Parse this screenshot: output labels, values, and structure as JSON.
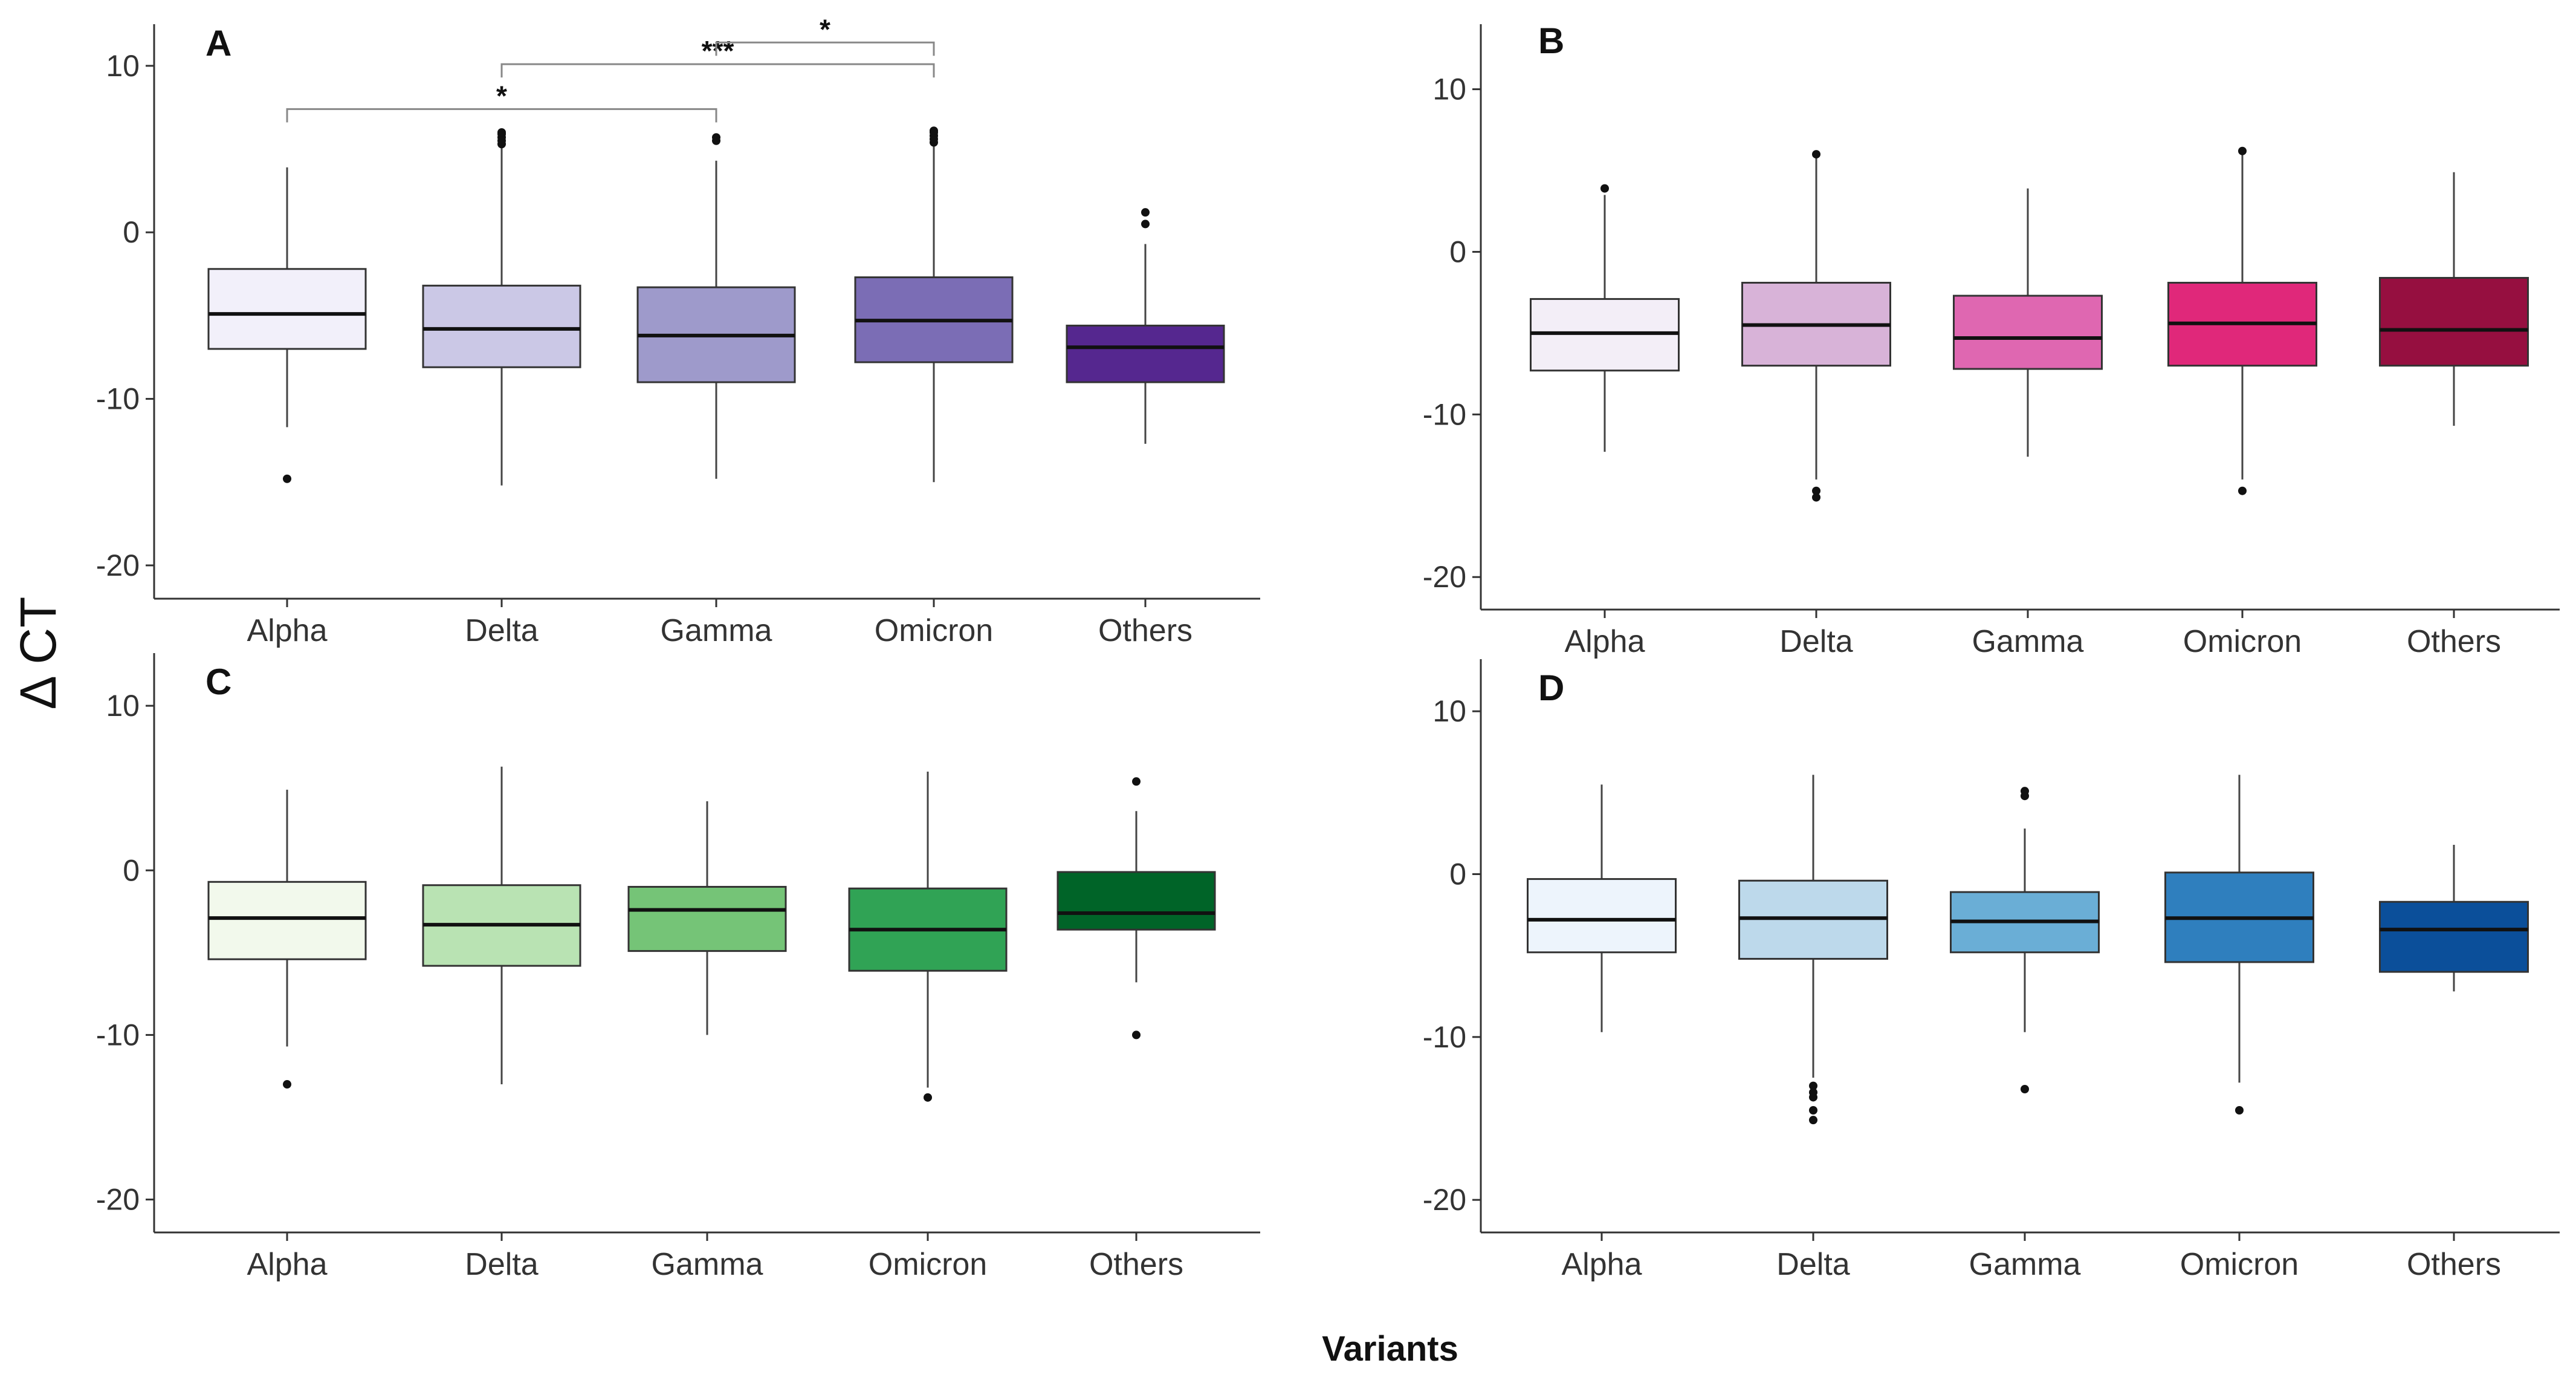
{
  "figure": {
    "ylabel": "Δ CT",
    "xlabel": "Variants"
  },
  "chart_data": [
    {
      "type": "box",
      "panel": "A",
      "title": "A",
      "categories": [
        "Alpha",
        "Delta",
        "Gamma",
        "Omicron",
        "Others"
      ],
      "ylim": [
        -22,
        12.5
      ],
      "yticks": [
        "10",
        "0",
        "-10",
        "-20"
      ],
      "ytick_values": [
        10,
        0,
        -10,
        -20
      ],
      "box_colors": [
        "#f2f0fa",
        "#cbc8e6",
        "#9e9acb",
        "#7b6db5",
        "#55278f"
      ],
      "boxes": [
        {
          "q1": -7.0,
          "median": -4.9,
          "q3": -2.2,
          "whisker_low": -11.7,
          "whisker_high": 3.9,
          "outliers": [
            -14.8
          ]
        },
        {
          "q1": -8.1,
          "median": -5.8,
          "q3": -3.2,
          "whisker_low": -15.2,
          "whisker_high": 5.3,
          "outliers": [
            5.5,
            5.7,
            5.9,
            6.0,
            5.3
          ]
        },
        {
          "q1": -9.0,
          "median": -6.2,
          "q3": -3.3,
          "whisker_low": -14.8,
          "whisker_high": 4.3,
          "outliers": [
            5.5,
            5.7
          ]
        },
        {
          "q1": -7.8,
          "median": -5.3,
          "q3": -2.7,
          "whisker_low": -15.0,
          "whisker_high": 5.3,
          "outliers": [
            5.4,
            5.6,
            5.8,
            6.0,
            6.1
          ]
        },
        {
          "q1": -9.0,
          "median": -6.9,
          "q3": -5.6,
          "whisker_low": -12.7,
          "whisker_high": -0.7,
          "outliers": [
            0.5,
            1.2
          ]
        }
      ],
      "annotations": [
        {
          "from": 0,
          "to": 2,
          "y": 7.4,
          "label": "*"
        },
        {
          "from": 1,
          "to": 3,
          "y": 10.1,
          "label": "***"
        },
        {
          "from": 2,
          "to": 3,
          "y": 11.4,
          "label": "*"
        }
      ]
    },
    {
      "type": "box",
      "panel": "B",
      "title": "B",
      "categories": [
        "Alpha",
        "Delta",
        "Gamma",
        "Omicron",
        "Others"
      ],
      "ylim": [
        -22,
        14
      ],
      "yticks": [
        "10",
        "0",
        "-10",
        "-20"
      ],
      "ytick_values": [
        10,
        0,
        -10,
        -20
      ],
      "box_colors": [
        "#f3eef7",
        "#d8b3d8",
        "#df67b1",
        "#e0287a",
        "#960f40"
      ],
      "boxes": [
        {
          "q1": -7.3,
          "median": -5.0,
          "q3": -2.9,
          "whisker_low": -12.3,
          "whisker_high": 3.5,
          "outliers": [
            3.9
          ]
        },
        {
          "q1": -7.0,
          "median": -4.5,
          "q3": -1.9,
          "whisker_low": -14.0,
          "whisker_high": 5.9,
          "outliers": [
            6.0,
            -14.7,
            -15.1
          ]
        },
        {
          "q1": -7.2,
          "median": -5.3,
          "q3": -2.7,
          "whisker_low": -12.6,
          "whisker_high": 3.9,
          "outliers": []
        },
        {
          "q1": -7.0,
          "median": -4.4,
          "q3": -1.9,
          "whisker_low": -14.0,
          "whisker_high": 6.1,
          "outliers": [
            6.2,
            -14.7
          ]
        },
        {
          "q1": -7.0,
          "median": -4.8,
          "q3": -1.6,
          "whisker_low": -10.7,
          "whisker_high": 4.9,
          "outliers": []
        }
      ],
      "annotations": []
    },
    {
      "type": "box",
      "panel": "C",
      "title": "C",
      "categories": [
        "Alpha",
        "Delta",
        "Gamma",
        "Omicron",
        "Others"
      ],
      "ylim": [
        -22,
        13.2
      ],
      "yticks": [
        "10",
        "0",
        "-10",
        "-20"
      ],
      "ytick_values": [
        10,
        0,
        -10,
        -20
      ],
      "box_colors": [
        "#f2f9ec",
        "#b9e3b3",
        "#75c477",
        "#30a355",
        "#006428"
      ],
      "boxes": [
        {
          "q1": -5.4,
          "median": -2.9,
          "q3": -0.7,
          "whisker_low": -10.7,
          "whisker_high": 4.9,
          "outliers": [
            -13.0
          ]
        },
        {
          "q1": -5.8,
          "median": -3.3,
          "q3": -0.9,
          "whisker_low": -13.0,
          "whisker_high": 6.3,
          "outliers": []
        },
        {
          "q1": -4.9,
          "median": -2.4,
          "q3": -1.0,
          "whisker_low": -10.0,
          "whisker_high": 4.2,
          "outliers": []
        },
        {
          "q1": -6.1,
          "median": -3.6,
          "q3": -1.1,
          "whisker_low": -13.2,
          "whisker_high": 6.0,
          "outliers": [
            -13.8
          ]
        },
        {
          "q1": -3.6,
          "median": -2.6,
          "q3": -0.1,
          "whisker_low": -6.8,
          "whisker_high": 3.6,
          "outliers": [
            5.4,
            -10.0
          ]
        }
      ],
      "annotations": []
    },
    {
      "type": "box",
      "panel": "D",
      "title": "D",
      "categories": [
        "Alpha",
        "Delta",
        "Gamma",
        "Omicron",
        "Others"
      ],
      "ylim": [
        -22,
        13.2
      ],
      "yticks": [
        "10",
        "0",
        "-10",
        "-20"
      ],
      "ytick_values": [
        10,
        0,
        -10,
        -20
      ],
      "box_colors": [
        "#edf4fc",
        "#bdd9eb",
        "#6aaed6",
        "#2f7fbe",
        "#0b4f9a"
      ],
      "boxes": [
        {
          "q1": -4.8,
          "median": -2.8,
          "q3": -0.3,
          "whisker_low": -9.7,
          "whisker_high": 5.5,
          "outliers": []
        },
        {
          "q1": -5.2,
          "median": -2.7,
          "q3": -0.4,
          "whisker_low": -12.5,
          "whisker_high": 6.1,
          "outliers": [
            -13.0,
            -13.4,
            -13.7,
            -14.5,
            -15.1
          ]
        },
        {
          "q1": -4.8,
          "median": -2.9,
          "q3": -1.1,
          "whisker_low": -9.7,
          "whisker_high": 2.8,
          "outliers": [
            4.8,
            5.1,
            -13.2
          ]
        },
        {
          "q1": -5.4,
          "median": -2.7,
          "q3": 0.1,
          "whisker_low": -12.8,
          "whisker_high": 6.1,
          "outliers": [
            -14.5
          ]
        },
        {
          "q1": -6.0,
          "median": -3.4,
          "q3": -1.7,
          "whisker_low": -7.2,
          "whisker_high": 1.8,
          "outliers": []
        }
      ],
      "annotations": []
    }
  ]
}
